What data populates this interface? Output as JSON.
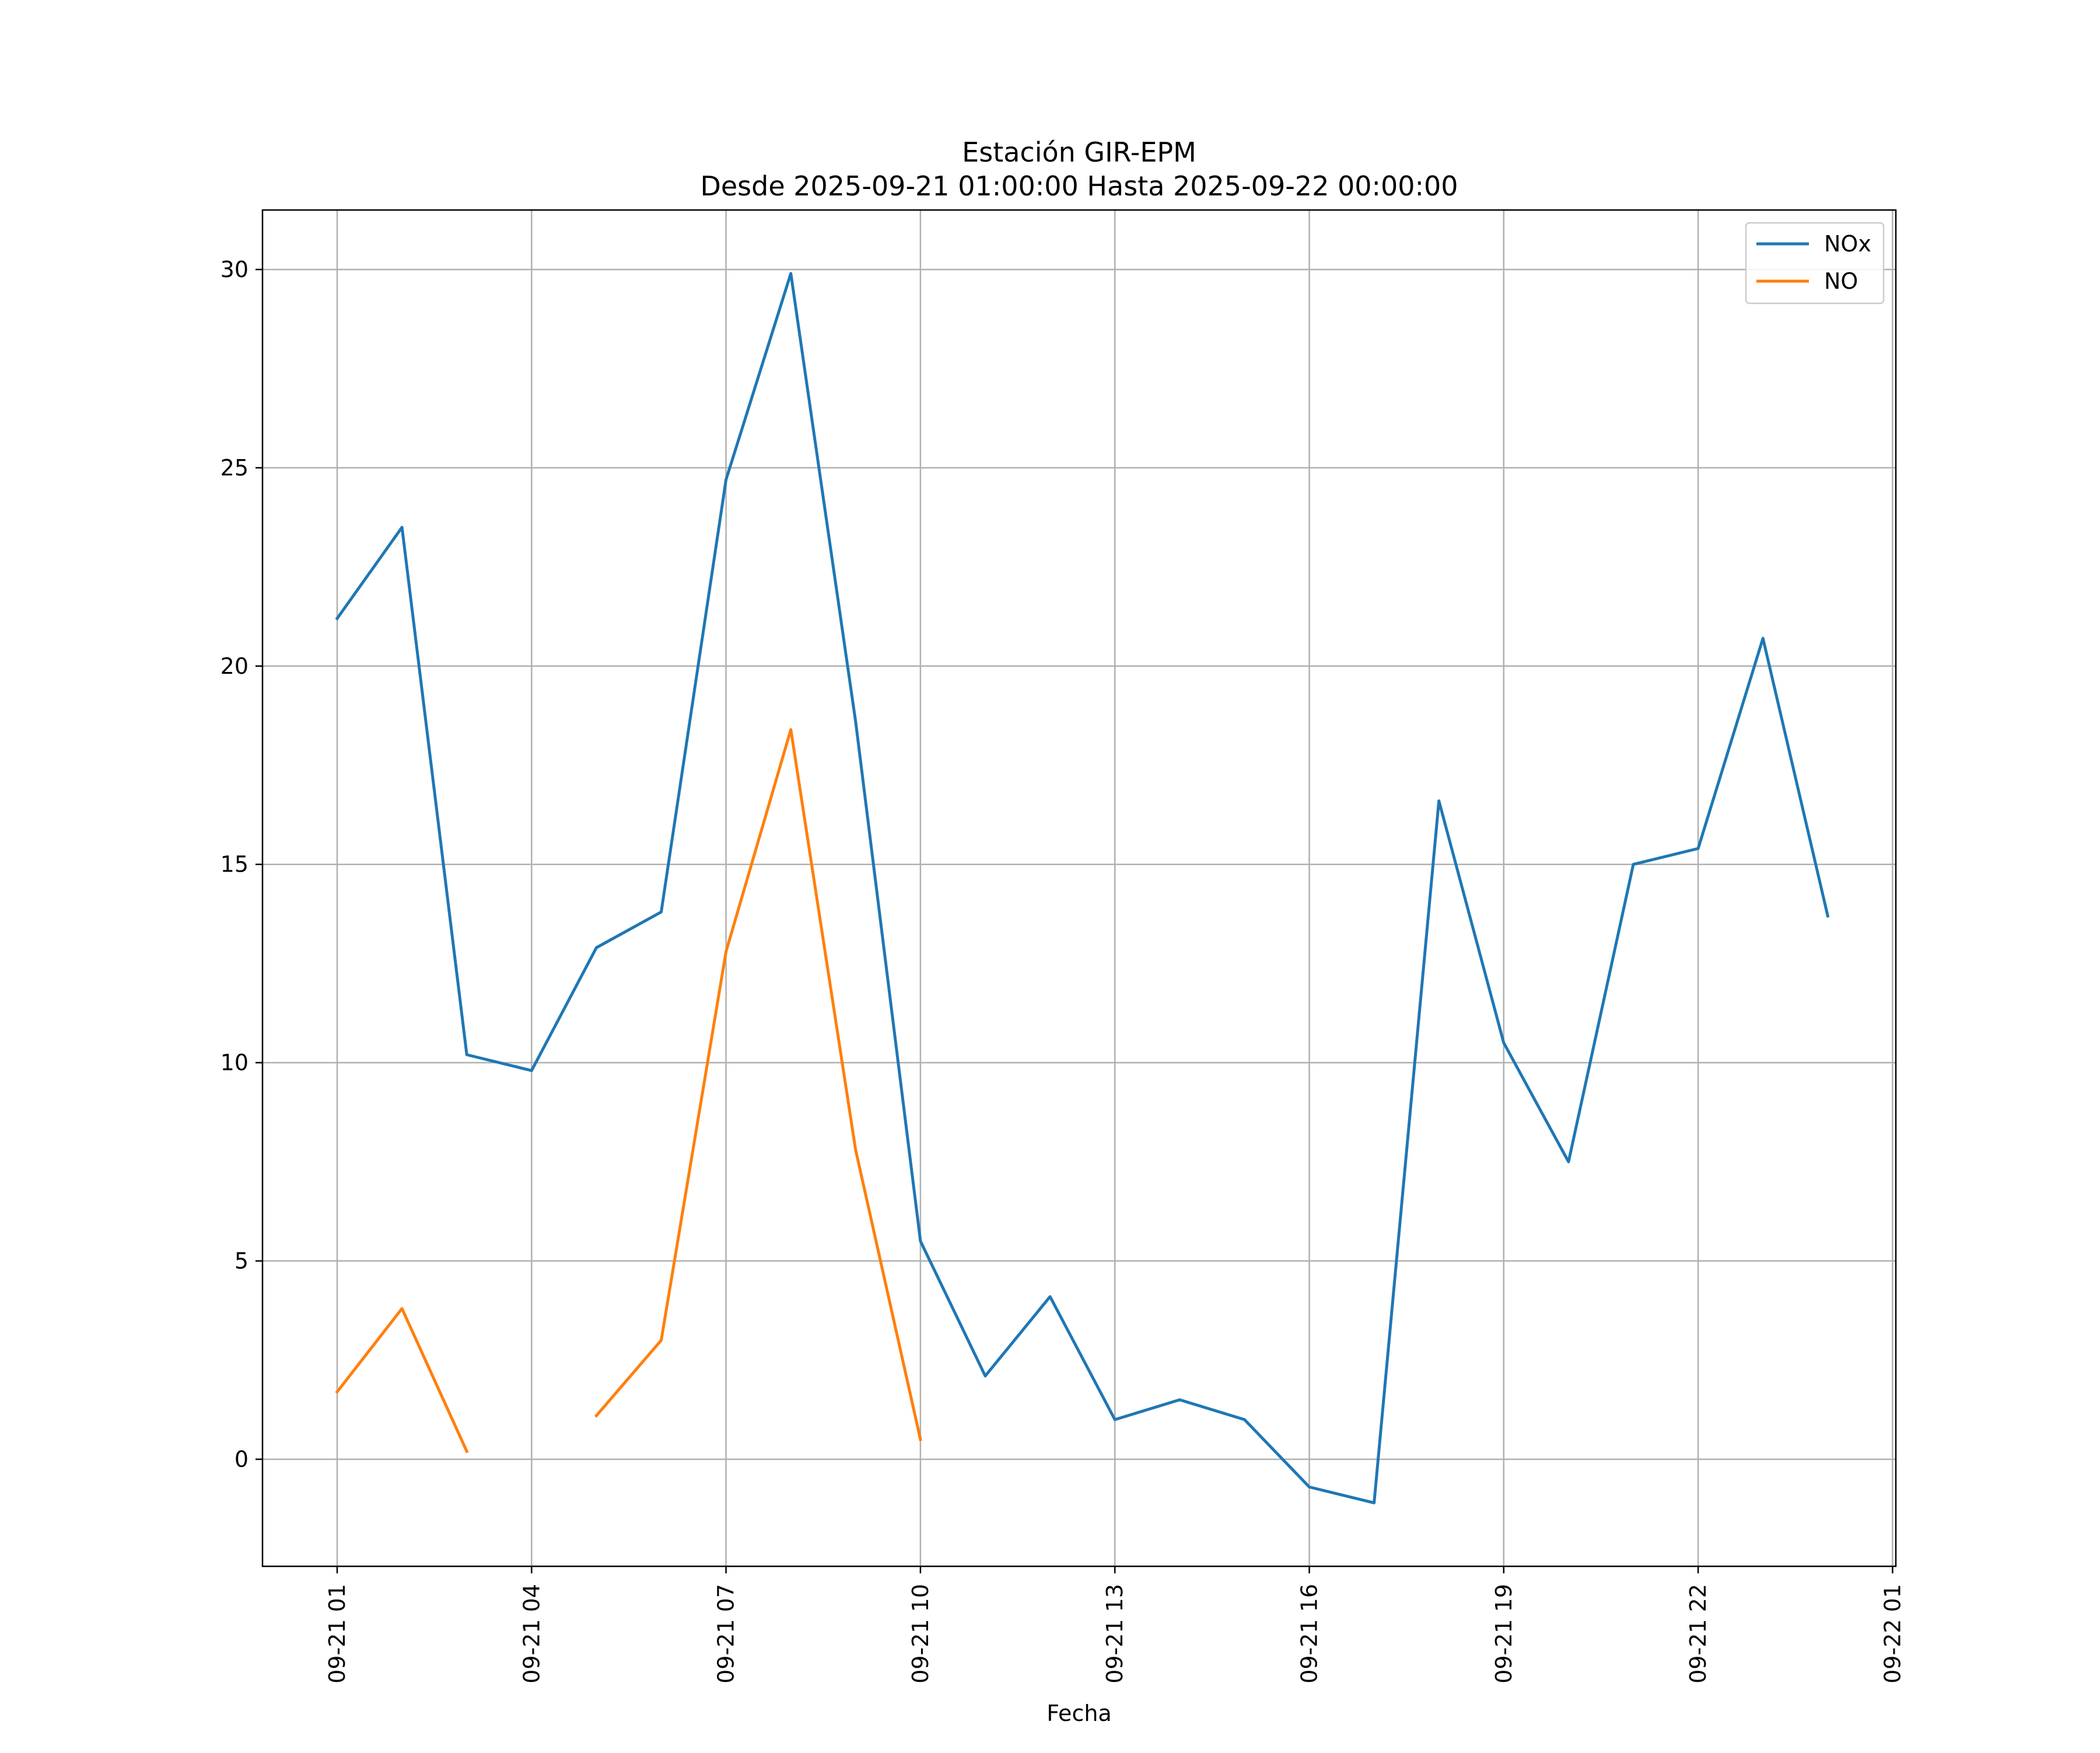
{
  "chart_data": {
    "type": "line",
    "title": "Estación GIR-EPM",
    "subtitle": "Desde 2025-09-21 01:00:00 Hasta 2025-09-22 00:00:00",
    "xlabel": "Fecha",
    "ylabel": "",
    "x": [
      "09-21 01",
      "09-21 02",
      "09-21 03",
      "09-21 04",
      "09-21 05",
      "09-21 06",
      "09-21 07",
      "09-21 08",
      "09-21 09",
      "09-21 10",
      "09-21 11",
      "09-21 12",
      "09-21 13",
      "09-21 14",
      "09-21 15",
      "09-21 16",
      "09-21 17",
      "09-21 18",
      "09-21 19",
      "09-21 20",
      "09-21 21",
      "09-21 22",
      "09-21 23",
      "09-22 00"
    ],
    "xticks": [
      "09-21 01",
      "09-21 04",
      "09-21 07",
      "09-21 10",
      "09-21 13",
      "09-21 16",
      "09-21 19",
      "09-21 22",
      "09-22 01"
    ],
    "xlim": [
      "09-21 00:00 (approx 00:52)",
      "09-22 01:05"
    ],
    "yticks": [
      0,
      5,
      10,
      15,
      20,
      25,
      30
    ],
    "ylim": [
      -2.7,
      31.5
    ],
    "grid": true,
    "legend_position": "top-right",
    "series": [
      {
        "name": "NOx",
        "color": "#1f77b4",
        "values": [
          21.2,
          23.5,
          10.2,
          9.8,
          12.9,
          13.8,
          24.7,
          29.9,
          18.6,
          5.5,
          2.1,
          4.1,
          1.0,
          1.5,
          1.0,
          -0.7,
          -1.1,
          16.6,
          10.5,
          7.5,
          15.0,
          15.4,
          20.7,
          13.7
        ]
      },
      {
        "name": "NO",
        "color": "#ff7f0e",
        "values": [
          1.7,
          3.8,
          0.2,
          null,
          1.1,
          3.0,
          12.8,
          18.4,
          7.8,
          0.5,
          null,
          null,
          null,
          null,
          null,
          null,
          null,
          null,
          null,
          null,
          null,
          null,
          null,
          null
        ]
      }
    ]
  }
}
